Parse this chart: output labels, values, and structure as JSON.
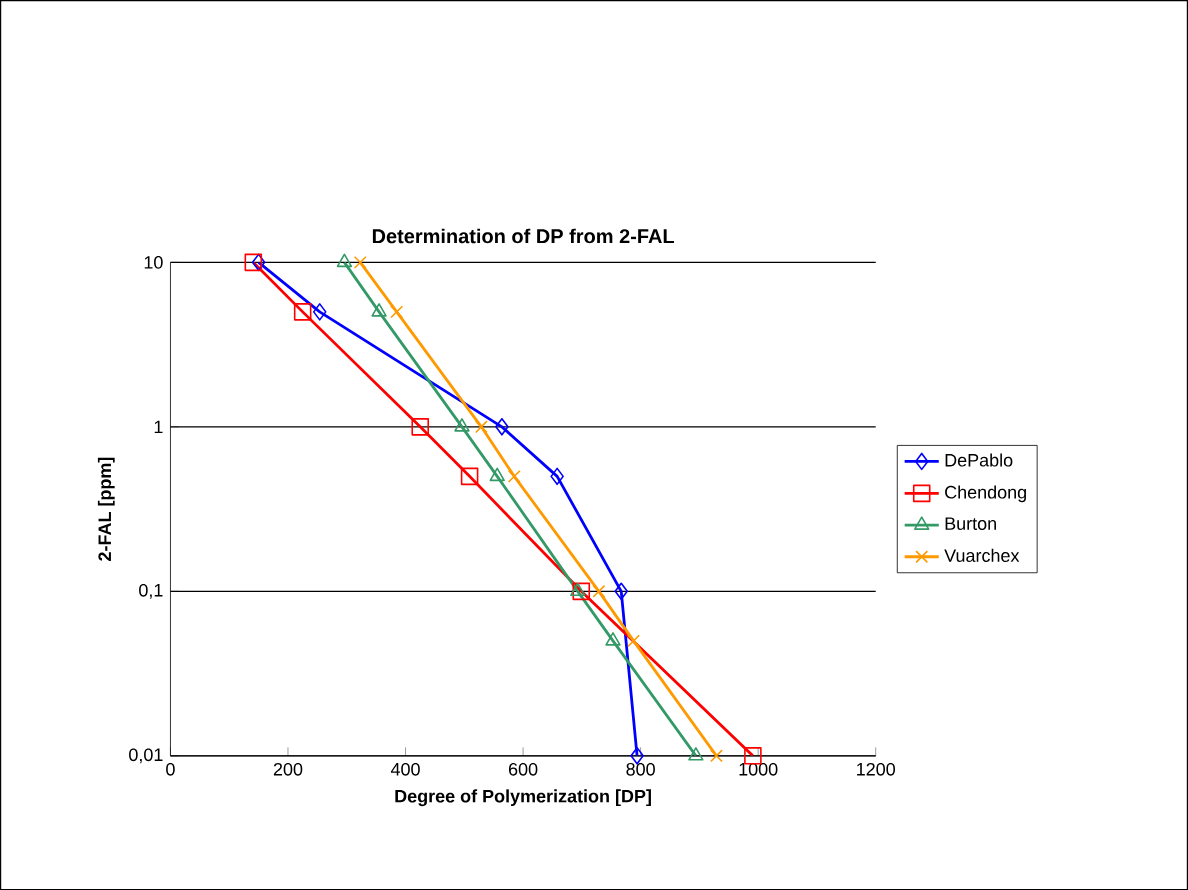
{
  "chart_data": {
    "type": "line",
    "title": "Determination of  DP from 2-FAL",
    "xlabel": "Degree of Polymerization [DP]",
    "ylabel": "2-FAL [ppm]",
    "log": "y",
    "grid": "y",
    "legend": "right",
    "line_style": "solid",
    "xlim": [
      0,
      1200
    ],
    "xticks": [
      0,
      200,
      400,
      600,
      800,
      1000,
      1200
    ],
    "ylim": [
      0.01,
      10
    ],
    "yticks": [
      {
        "value": 0.01,
        "label": "0,01"
      },
      {
        "value": 0.1,
        "label": "0,1"
      },
      {
        "value": 1,
        "label": "1"
      },
      {
        "value": 10,
        "label": "10"
      }
    ],
    "series": [
      {
        "name": "DePablo",
        "color": "#0000ff",
        "marker": "diamond",
        "x": [
          150,
          254,
          564,
          658,
          767,
          794
        ],
        "values": [
          10,
          5,
          1,
          0.5,
          0.1,
          0.01
        ]
      },
      {
        "name": "Chendong",
        "color": "#ff0000",
        "marker": "square",
        "x": [
          141,
          225,
          425,
          509,
          699,
          991
        ],
        "values": [
          10,
          5,
          1,
          0.5,
          0.1,
          0.01
        ]
      },
      {
        "name": "Burton",
        "color": "#339966",
        "marker": "triangle",
        "x": [
          296,
          355,
          496,
          556,
          693,
          753,
          894
        ],
        "values": [
          10,
          5,
          1,
          0.5,
          0.1,
          0.05,
          0.01
        ]
      },
      {
        "name": "Vuarchex",
        "color": "#ff9900",
        "marker": "cross",
        "x": [
          323,
          385,
          529,
          585,
          729,
          788,
          929
        ],
        "values": [
          10,
          5,
          1,
          0.5,
          0.1,
          0.05,
          0.01
        ]
      }
    ]
  }
}
